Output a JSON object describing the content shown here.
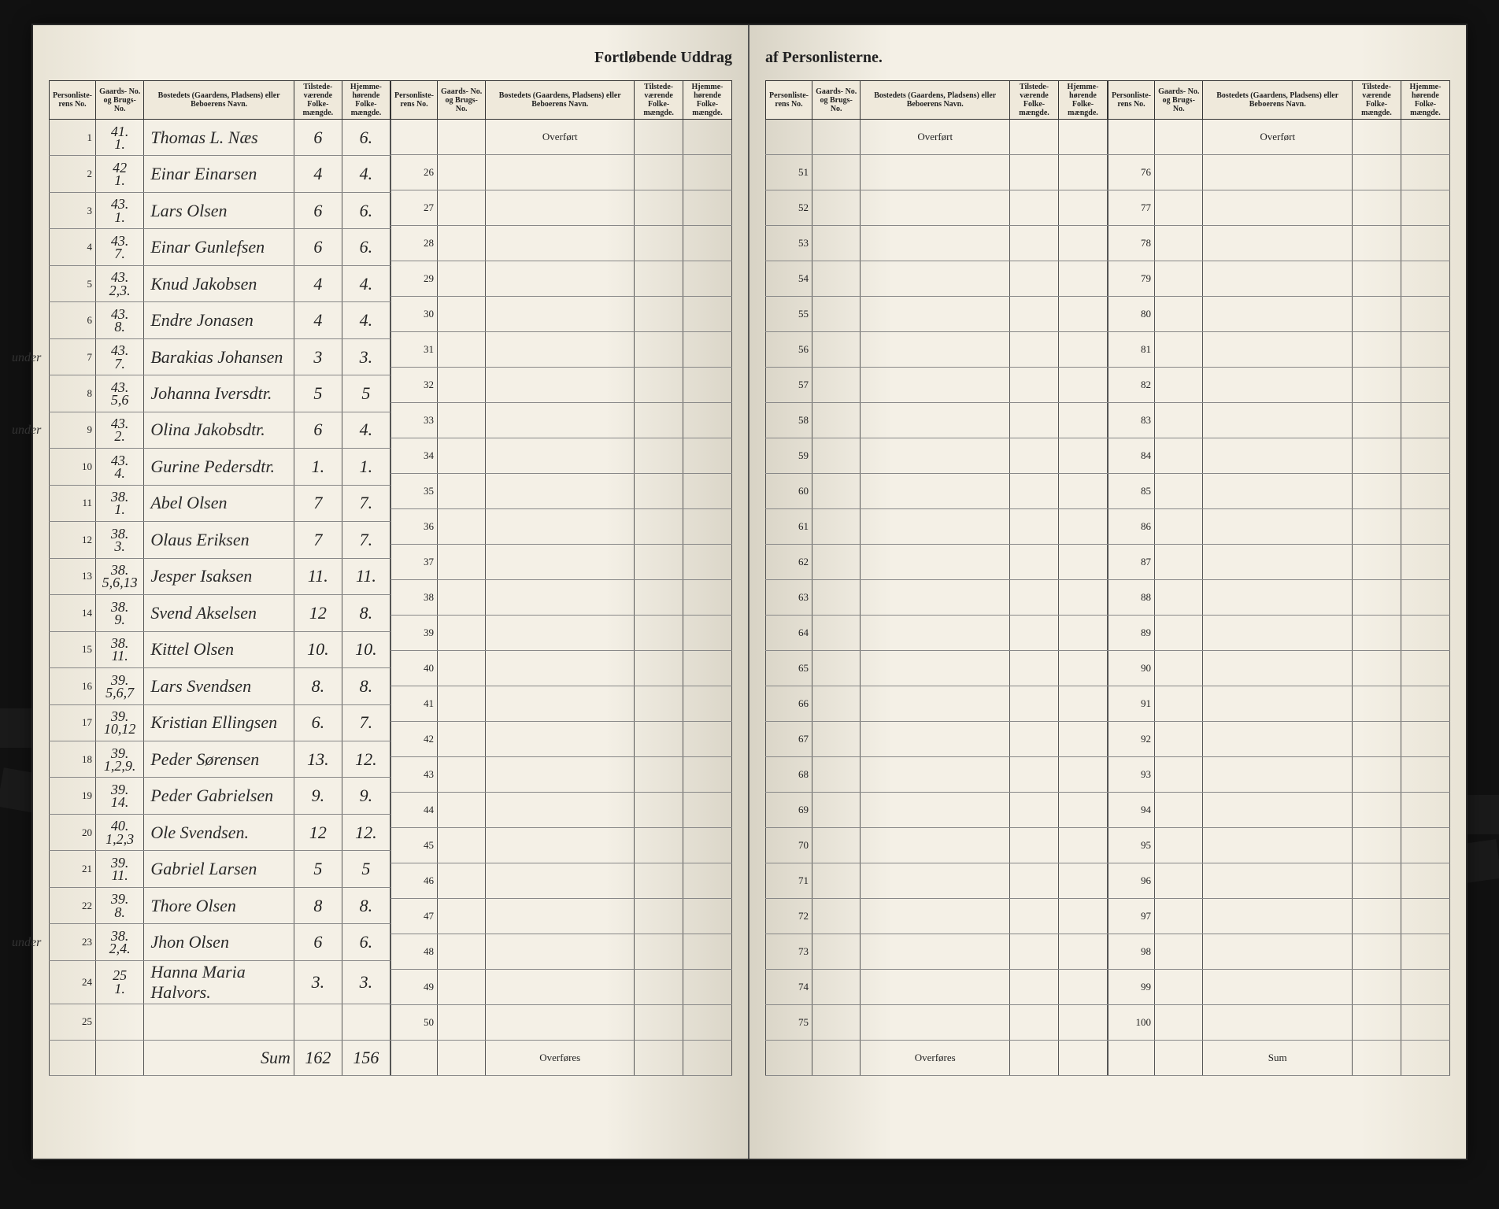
{
  "title_left": "Fortløbende Uddrag",
  "title_right": "af Personlisterne.",
  "headers": {
    "personliste": "Personliste-\nrens\nNo.",
    "gaard": "Gaards-\nNo.\nog\nBrugs-\nNo.",
    "bosted": "Bostedets (Gaardens, Pladsens) eller\nBeboerens Navn.",
    "tilstede": "Tilstede-\nværende\nFolke-\nmængde.",
    "hjemme": "Hjemme-\nhørende\nFolke-\nmængde."
  },
  "overfort_label": "Overført",
  "overfores_label": "Overføres",
  "sum_label": "Sum",
  "sum_written": "Sum",
  "sum_tilstede": "162",
  "sum_hjemme": "156",
  "rows_block1": [
    {
      "no": "1",
      "gaard": "41.\n1.",
      "name": "Thomas L. Næs",
      "t": "6",
      "h": "6.",
      "note": ""
    },
    {
      "no": "2",
      "gaard": "42\n1.",
      "name": "Einar Einarsen",
      "t": "4",
      "h": "4.",
      "note": ""
    },
    {
      "no": "3",
      "gaard": "43.\n1.",
      "name": "Lars Olsen",
      "t": "6",
      "h": "6.",
      "note": ""
    },
    {
      "no": "4",
      "gaard": "43.\n7.",
      "name": "Einar Gunlefsen",
      "t": "6",
      "h": "6.",
      "note": ""
    },
    {
      "no": "5",
      "gaard": "43.\n2,3.",
      "name": "Knud Jakobsen",
      "t": "4",
      "h": "4.",
      "note": ""
    },
    {
      "no": "6",
      "gaard": "43.\n8.",
      "name": "Endre Jonasen",
      "t": "4",
      "h": "4.",
      "note": ""
    },
    {
      "no": "7",
      "gaard": "43.\n7.",
      "name": "Barakias Johansen",
      "t": "3",
      "h": "3.",
      "note": "under"
    },
    {
      "no": "8",
      "gaard": "43.\n5,6",
      "name": "Johanna Iversdtr.",
      "t": "5",
      "h": "5",
      "note": ""
    },
    {
      "no": "9",
      "gaard": "43.\n2.",
      "name": "Olina Jakobsdtr.",
      "t": "6",
      "h": "4.",
      "note": "under"
    },
    {
      "no": "10",
      "gaard": "43.\n4.",
      "name": "Gurine Pedersdtr.",
      "t": "1.",
      "h": "1.",
      "note": ""
    },
    {
      "no": "11",
      "gaard": "38.\n1.",
      "name": "Abel Olsen",
      "t": "7",
      "h": "7.",
      "note": ""
    },
    {
      "no": "12",
      "gaard": "38.\n3.",
      "name": "Olaus Eriksen",
      "t": "7",
      "h": "7.",
      "note": ""
    },
    {
      "no": "13",
      "gaard": "38.\n5,6,13",
      "name": "Jesper Isaksen",
      "t": "11.",
      "h": "11.",
      "note": ""
    },
    {
      "no": "14",
      "gaard": "38.\n9.",
      "name": "Svend Akselsen",
      "t": "12",
      "h": "8.",
      "note": ""
    },
    {
      "no": "15",
      "gaard": "38.\n11.",
      "name": "Kittel Olsen",
      "t": "10.",
      "h": "10.",
      "note": ""
    },
    {
      "no": "16",
      "gaard": "39.\n5,6,7",
      "name": "Lars Svendsen",
      "t": "8.",
      "h": "8.",
      "note": ""
    },
    {
      "no": "17",
      "gaard": "39.\n10,12",
      "name": "Kristian Ellingsen",
      "t": "6.",
      "h": "7.",
      "note": ""
    },
    {
      "no": "18",
      "gaard": "39.\n1,2,9.",
      "name": "Peder Sørensen",
      "t": "13.",
      "h": "12.",
      "note": ""
    },
    {
      "no": "19",
      "gaard": "39.\n14.",
      "name": "Peder Gabrielsen",
      "t": "9.",
      "h": "9.",
      "note": ""
    },
    {
      "no": "20",
      "gaard": "40.\n1,2,3",
      "name": "Ole Svendsen.",
      "t": "12",
      "h": "12.",
      "note": ""
    },
    {
      "no": "21",
      "gaard": "39.\n11.",
      "name": "Gabriel Larsen",
      "t": "5",
      "h": "5",
      "note": ""
    },
    {
      "no": "22",
      "gaard": "39.\n8.",
      "name": "Thore Olsen",
      "t": "8",
      "h": "8.",
      "note": ""
    },
    {
      "no": "23",
      "gaard": "38.\n2,4.",
      "name": "Jhon Olsen",
      "t": "6",
      "h": "6.",
      "note": "under"
    },
    {
      "no": "24",
      "gaard": "25\n1.",
      "name": "Hanna Maria Halvors.",
      "t": "3.",
      "h": "3.",
      "note": ""
    },
    {
      "no": "25",
      "gaard": "",
      "name": "",
      "t": "",
      "h": "",
      "note": ""
    }
  ],
  "rows_block2_start": 26,
  "rows_block2_end": 50,
  "rows_block3_start": 51,
  "rows_block3_end": 75,
  "rows_block4_start": 76,
  "rows_block4_end": 100,
  "colors": {
    "paper": "#f4f0e6",
    "ink": "#222222",
    "border": "#333333",
    "background": "#0a0a0a"
  }
}
